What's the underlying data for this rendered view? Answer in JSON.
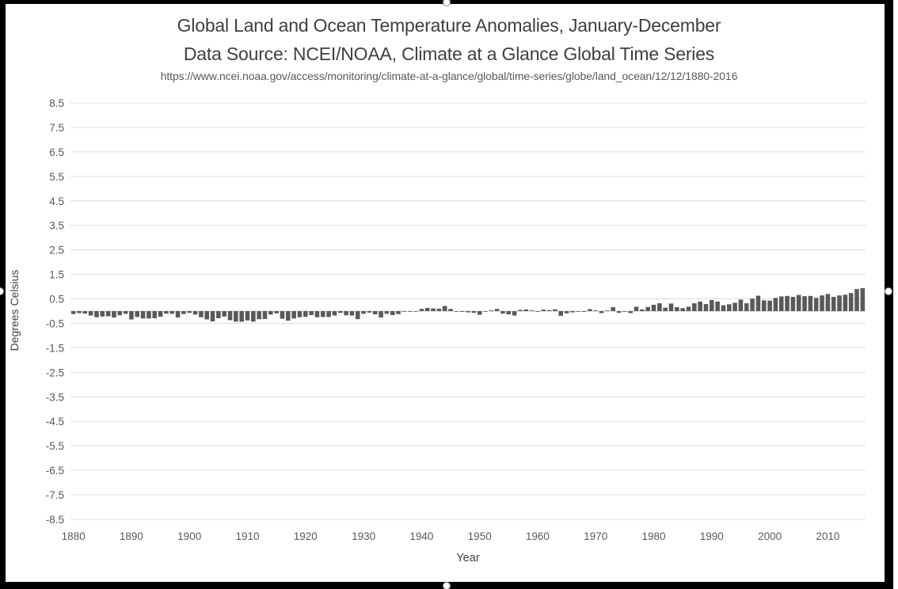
{
  "chart": {
    "title": "Global Land and Ocean Temperature Anomalies, January-December",
    "subtitle": "Data Source: NCEI/NOAA, Climate at a Glance Global Time Series",
    "source_url": "https://www.ncei.noaa.gov/access/monitoring/climate-at-a-glance/global/time-series/globe/land_ocean/12/12/1880-2016",
    "xlabel": "Year",
    "ylabel": "Degrees Celsius"
  },
  "chart_data": {
    "type": "bar",
    "title": "Global Land and Ocean Temperature Anomalies, January-December",
    "subtitle": "Data Source: NCEI/NOAA, Climate at a Glance Global Time Series",
    "source_url": "https://www.ncei.noaa.gov/access/monitoring/climate-at-a-glance/global/time-series/globe/land_ocean/12/12/1880-2016",
    "xlabel": "Year",
    "ylabel": "Degrees Celsius",
    "x_start_year": 1880,
    "x_end_year": 2016,
    "x_tick_years": [
      1880,
      1890,
      1900,
      1910,
      1920,
      1930,
      1940,
      1950,
      1960,
      1970,
      1980,
      1990,
      2000,
      2010
    ],
    "y_ticks": [
      8.5,
      7.5,
      6.5,
      5.5,
      4.5,
      3.5,
      2.5,
      1.5,
      0.5,
      -0.5,
      -1.5,
      -2.5,
      -3.5,
      -4.5,
      -5.5,
      -6.5,
      -7.5,
      -8.5
    ],
    "ylim": [
      -8.5,
      8.5
    ],
    "grid": true,
    "legend": "none",
    "bar_color": "#595959",
    "gridline_color": "#dcdcdc",
    "zero_line_color": "#d0d0d0",
    "tick_label_color": "#595959",
    "title_color": "#3f3f3f",
    "values": [
      -0.12,
      -0.08,
      -0.1,
      -0.18,
      -0.25,
      -0.22,
      -0.21,
      -0.26,
      -0.17,
      -0.11,
      -0.34,
      -0.24,
      -0.3,
      -0.3,
      -0.29,
      -0.23,
      -0.1,
      -0.11,
      -0.26,
      -0.12,
      -0.07,
      -0.14,
      -0.25,
      -0.34,
      -0.42,
      -0.29,
      -0.22,
      -0.37,
      -0.43,
      -0.43,
      -0.38,
      -0.43,
      -0.33,
      -0.32,
      -0.14,
      -0.09,
      -0.31,
      -0.39,
      -0.3,
      -0.25,
      -0.23,
      -0.16,
      -0.25,
      -0.24,
      -0.24,
      -0.18,
      -0.07,
      -0.17,
      -0.18,
      -0.33,
      -0.11,
      -0.06,
      -0.13,
      -0.26,
      -0.11,
      -0.16,
      -0.12,
      -0.01,
      -0.02,
      -0.01,
      0.09,
      0.13,
      0.11,
      0.1,
      0.21,
      0.09,
      -0.01,
      -0.03,
      -0.05,
      -0.07,
      -0.15,
      -0.02,
      0.03,
      0.09,
      -0.1,
      -0.13,
      -0.18,
      0.05,
      0.07,
      0.03,
      -0.02,
      0.06,
      0.04,
      0.07,
      -0.19,
      -0.09,
      -0.05,
      -0.01,
      -0.03,
      0.08,
      0.03,
      -0.08,
      0.02,
      0.16,
      -0.07,
      -0.01,
      -0.08,
      0.18,
      0.07,
      0.17,
      0.26,
      0.32,
      0.14,
      0.31,
      0.16,
      0.12,
      0.18,
      0.32,
      0.39,
      0.29,
      0.45,
      0.39,
      0.24,
      0.28,
      0.34,
      0.47,
      0.32,
      0.51,
      0.63,
      0.44,
      0.43,
      0.54,
      0.6,
      0.62,
      0.58,
      0.66,
      0.61,
      0.62,
      0.54,
      0.64,
      0.7,
      0.58,
      0.64,
      0.67,
      0.74,
      0.9,
      0.94
    ]
  }
}
